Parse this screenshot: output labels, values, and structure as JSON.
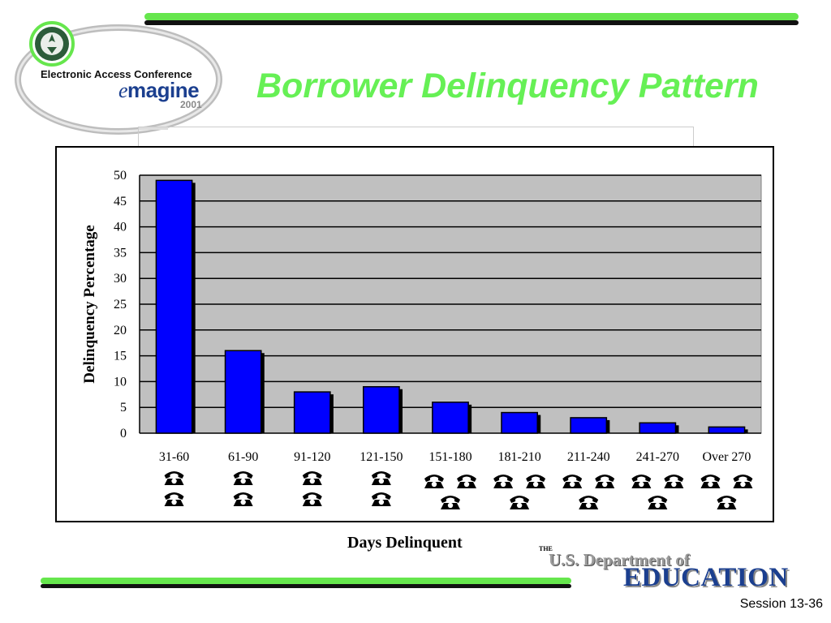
{
  "slide": {
    "title": "Borrower Delinquency Pattern",
    "session_label": "Session 13-36"
  },
  "conference_logo": {
    "name": "Electronic Access Conference",
    "brand_prefix": "e",
    "brand_rest": "magine",
    "year": "2001"
  },
  "agency_logo": {
    "the": "THE",
    "department": "U.S. Department of",
    "name": "EDUCATION"
  },
  "colors": {
    "accent_green": "#66f055",
    "bar_fill": "#0000ff",
    "plot_background": "#c0c0c0",
    "brand_blue": "#1b3f8f"
  },
  "chart_data": {
    "type": "bar",
    "title": "",
    "xlabel": "Days Delinquent",
    "ylabel": "Delinquency Percentage",
    "ylim": [
      0,
      50
    ],
    "yticks": [
      0,
      5,
      10,
      15,
      20,
      25,
      30,
      35,
      40,
      45,
      50
    ],
    "grid": true,
    "legend": "none",
    "categories": [
      "31-60",
      "61-90",
      "91-120",
      "121-150",
      "151-180",
      "181-210",
      "211-240",
      "241-270",
      "Over 270"
    ],
    "values": [
      49,
      16,
      8,
      9,
      6,
      4,
      3,
      2,
      1.2
    ],
    "phone_icon_count_per_category": [
      2,
      2,
      2,
      2,
      3,
      3,
      3,
      3,
      3
    ]
  }
}
